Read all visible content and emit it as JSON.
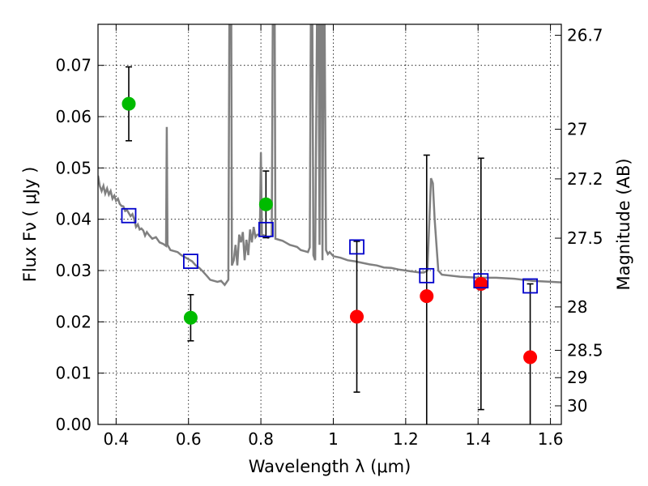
{
  "chart_data": {
    "type": "scatter",
    "xlabel": "Wavelength  λ (μm)",
    "ylabel": "Flux  Fν  ( μJy )",
    "ylabel_right": "Magnitude (AB)",
    "xlim": [
      0.35,
      1.63
    ],
    "ylim": [
      0.0,
      0.078
    ],
    "grid": true,
    "x_ticks": [
      {
        "value": 0.4,
        "label": "0.4"
      },
      {
        "value": 0.6,
        "label": "0.6"
      },
      {
        "value": 0.8,
        "label": "0.8"
      },
      {
        "value": 1.0,
        "label": "1"
      },
      {
        "value": 1.2,
        "label": "1.2"
      },
      {
        "value": 1.4,
        "label": "1.4"
      },
      {
        "value": 1.6,
        "label": "1.6"
      }
    ],
    "y_ticks": [
      {
        "value": 0.0,
        "label": "0.00"
      },
      {
        "value": 0.01,
        "label": "0.01"
      },
      {
        "value": 0.02,
        "label": "0.02"
      },
      {
        "value": 0.03,
        "label": "0.03"
      },
      {
        "value": 0.04,
        "label": "0.04"
      },
      {
        "value": 0.05,
        "label": "0.05"
      },
      {
        "value": 0.06,
        "label": "0.06"
      },
      {
        "value": 0.07,
        "label": "0.07"
      }
    ],
    "right_ticks": [
      {
        "mag": 26.7,
        "label": "26.7"
      },
      {
        "mag": 27.0,
        "label": "27"
      },
      {
        "mag": 27.2,
        "label": "27.2"
      },
      {
        "mag": 27.5,
        "label": "27.5"
      },
      {
        "mag": 28.0,
        "label": "28"
      },
      {
        "mag": 28.5,
        "label": "28.5"
      },
      {
        "mag": 29.0,
        "label": "29"
      },
      {
        "mag": 30.0,
        "label": "30"
      }
    ],
    "series": [
      {
        "color": "#00bb00",
        "marker": "circle",
        "points": [
          {
            "x": 0.435,
            "y": 0.0625,
            "err_low": 0.0072,
            "err_high": 0.0072
          },
          {
            "x": 0.606,
            "y": 0.0208,
            "err_low": 0.0045,
            "err_high": 0.0045
          },
          {
            "x": 0.814,
            "y": 0.0429,
            "err_low": 0.0065,
            "err_high": 0.0065
          }
        ]
      },
      {
        "color": "#ff0000",
        "marker": "circle",
        "points": [
          {
            "x": 1.065,
            "y": 0.021,
            "err_low": 0.0147,
            "err_high": 0.0147
          },
          {
            "x": 1.258,
            "y": 0.025,
            "err_low": 0.0275,
            "err_high": 0.0275
          },
          {
            "x": 1.408,
            "y": 0.0274,
            "err_low": 0.0245,
            "err_high": 0.0245
          },
          {
            "x": 1.544,
            "y": 0.0131,
            "err_low": 0.0143,
            "err_high": 0.0143
          }
        ]
      },
      {
        "color": "#0000cc",
        "marker": "open-square",
        "points": [
          {
            "x": 0.435,
            "y": 0.0407
          },
          {
            "x": 0.606,
            "y": 0.0318
          },
          {
            "x": 0.814,
            "y": 0.038
          },
          {
            "x": 1.065,
            "y": 0.0346
          },
          {
            "x": 1.258,
            "y": 0.029
          },
          {
            "x": 1.408,
            "y": 0.028
          },
          {
            "x": 1.544,
            "y": 0.027
          }
        ]
      }
    ],
    "model_spectrum": {
      "color": "#808080",
      "points": [
        [
          0.35,
          0.0485
        ],
        [
          0.355,
          0.0465
        ],
        [
          0.36,
          0.0455
        ],
        [
          0.365,
          0.0465
        ],
        [
          0.37,
          0.045
        ],
        [
          0.375,
          0.046
        ],
        [
          0.38,
          0.0448
        ],
        [
          0.385,
          0.0455
        ],
        [
          0.39,
          0.044
        ],
        [
          0.395,
          0.0446
        ],
        [
          0.4,
          0.0436
        ],
        [
          0.405,
          0.044
        ],
        [
          0.41,
          0.043
        ],
        [
          0.415,
          0.0426
        ],
        [
          0.42,
          0.0425
        ],
        [
          0.425,
          0.0416
        ],
        [
          0.43,
          0.0418
        ],
        [
          0.435,
          0.0412
        ],
        [
          0.44,
          0.0406
        ],
        [
          0.445,
          0.041
        ],
        [
          0.45,
          0.04
        ],
        [
          0.455,
          0.0385
        ],
        [
          0.46,
          0.039
        ],
        [
          0.465,
          0.038
        ],
        [
          0.47,
          0.0382
        ],
        [
          0.475,
          0.0378
        ],
        [
          0.48,
          0.0368
        ],
        [
          0.485,
          0.0375
        ],
        [
          0.49,
          0.037
        ],
        [
          0.5,
          0.0362
        ],
        [
          0.51,
          0.0365
        ],
        [
          0.52,
          0.0355
        ],
        [
          0.53,
          0.0352
        ],
        [
          0.538,
          0.0348
        ],
        [
          0.54,
          0.058
        ],
        [
          0.542,
          0.035
        ],
        [
          0.55,
          0.034
        ],
        [
          0.56,
          0.0338
        ],
        [
          0.57,
          0.0336
        ],
        [
          0.58,
          0.033
        ],
        [
          0.59,
          0.0326
        ],
        [
          0.6,
          0.0322
        ],
        [
          0.61,
          0.0318
        ],
        [
          0.62,
          0.031
        ],
        [
          0.63,
          0.0305
        ],
        [
          0.64,
          0.0298
        ],
        [
          0.65,
          0.029
        ],
        [
          0.66,
          0.0282
        ],
        [
          0.67,
          0.028
        ],
        [
          0.68,
          0.0278
        ],
        [
          0.69,
          0.028
        ],
        [
          0.7,
          0.0272
        ],
        [
          0.71,
          0.0282
        ],
        [
          0.713,
          0.08
        ],
        [
          0.718,
          0.08
        ],
        [
          0.72,
          0.031
        ],
        [
          0.725,
          0.032
        ],
        [
          0.73,
          0.035
        ],
        [
          0.735,
          0.031
        ],
        [
          0.74,
          0.037
        ],
        [
          0.745,
          0.0355
        ],
        [
          0.75,
          0.0375
        ],
        [
          0.755,
          0.032
        ],
        [
          0.76,
          0.036
        ],
        [
          0.765,
          0.033
        ],
        [
          0.77,
          0.038
        ],
        [
          0.775,
          0.0355
        ],
        [
          0.78,
          0.0385
        ],
        [
          0.785,
          0.0365
        ],
        [
          0.79,
          0.037
        ],
        [
          0.797,
          0.037
        ],
        [
          0.8,
          0.053
        ],
        [
          0.803,
          0.037
        ],
        [
          0.81,
          0.0368
        ],
        [
          0.82,
          0.0364
        ],
        [
          0.83,
          0.0368
        ],
        [
          0.833,
          0.08
        ],
        [
          0.838,
          0.08
        ],
        [
          0.84,
          0.0362
        ],
        [
          0.85,
          0.036
        ],
        [
          0.86,
          0.0358
        ],
        [
          0.87,
          0.0354
        ],
        [
          0.88,
          0.035
        ],
        [
          0.89,
          0.0348
        ],
        [
          0.9,
          0.0346
        ],
        [
          0.91,
          0.034
        ],
        [
          0.92,
          0.0338
        ],
        [
          0.93,
          0.0336
        ],
        [
          0.935,
          0.0345
        ],
        [
          0.938,
          0.08
        ],
        [
          0.942,
          0.08
        ],
        [
          0.945,
          0.033
        ],
        [
          0.95,
          0.032
        ],
        [
          0.955,
          0.08
        ],
        [
          0.959,
          0.08
        ],
        [
          0.962,
          0.035
        ],
        [
          0.964,
          0.08
        ],
        [
          0.968,
          0.08
        ],
        [
          0.97,
          0.032
        ],
        [
          0.973,
          0.08
        ],
        [
          0.976,
          0.08
        ],
        [
          0.98,
          0.034
        ],
        [
          0.985,
          0.0332
        ],
        [
          0.99,
          0.0336
        ],
        [
          1.0,
          0.0328
        ],
        [
          1.02,
          0.0325
        ],
        [
          1.04,
          0.032
        ],
        [
          1.06,
          0.0318
        ],
        [
          1.08,
          0.0315
        ],
        [
          1.1,
          0.0312
        ],
        [
          1.12,
          0.031
        ],
        [
          1.14,
          0.0306
        ],
        [
          1.16,
          0.0305
        ],
        [
          1.18,
          0.0302
        ],
        [
          1.2,
          0.03
        ],
        [
          1.22,
          0.0298
        ],
        [
          1.24,
          0.0296
        ],
        [
          1.25,
          0.0296
        ],
        [
          1.26,
          0.03
        ],
        [
          1.27,
          0.048
        ],
        [
          1.275,
          0.047
        ],
        [
          1.28,
          0.04
        ],
        [
          1.29,
          0.03
        ],
        [
          1.3,
          0.0292
        ],
        [
          1.35,
          0.0288
        ],
        [
          1.4,
          0.0286
        ],
        [
          1.45,
          0.0286
        ],
        [
          1.5,
          0.0284
        ],
        [
          1.55,
          0.028
        ],
        [
          1.6,
          0.0278
        ],
        [
          1.63,
          0.0277
        ]
      ]
    }
  }
}
